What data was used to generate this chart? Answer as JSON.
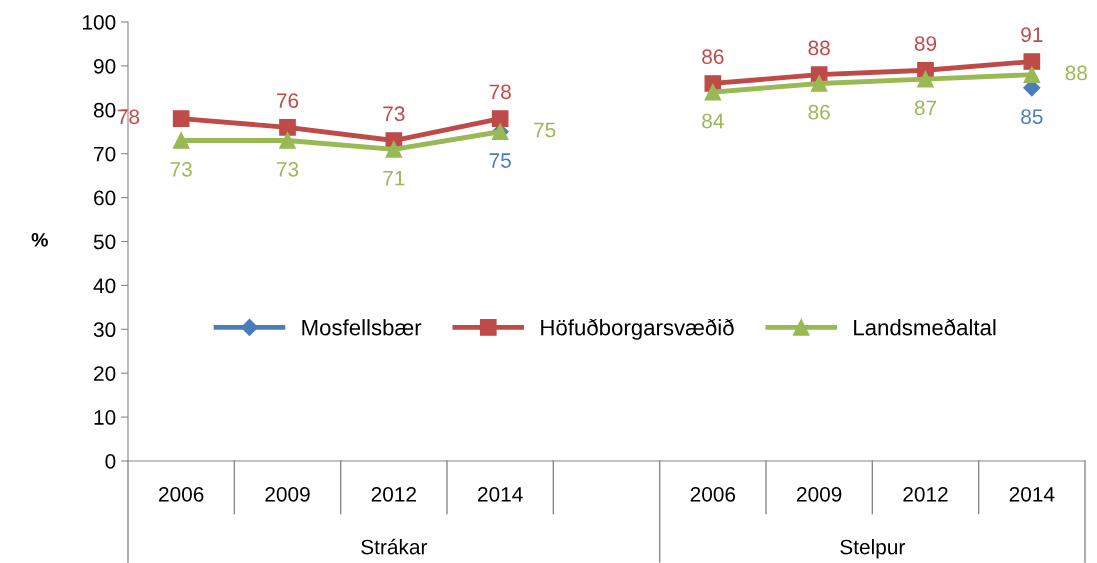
{
  "chart_data": {
    "type": "line",
    "ylabel": "%",
    "categories": [
      "2006",
      "2009",
      "2012",
      "2014",
      null,
      "2006",
      "2009",
      "2012",
      "2014"
    ],
    "annotations": [
      "Strákar",
      "Stelpur"
    ],
    "series": [
      {
        "name": "Mosfellsbær",
        "color": "#4a7ebb",
        "marker": "diamond",
        "values": [
          null,
          null,
          null,
          75,
          null,
          null,
          null,
          null,
          85
        ]
      },
      {
        "name": "Höfuðborgarsvæðið",
        "color": "#be4b48",
        "marker": "square",
        "values": [
          78,
          76,
          73,
          78,
          null,
          86,
          88,
          89,
          91
        ]
      },
      {
        "name": "Landsmeðaltal",
        "color": "#98b954",
        "marker": "triangle",
        "values": [
          73,
          73,
          71,
          75,
          null,
          84,
          86,
          87,
          88
        ]
      }
    ],
    "ylim": [
      0,
      100
    ],
    "yticks": [
      0,
      10,
      20,
      30,
      40,
      50,
      60,
      70,
      80,
      90,
      100
    ],
    "data_labels": true,
    "legend": "center",
    "grid": false
  }
}
